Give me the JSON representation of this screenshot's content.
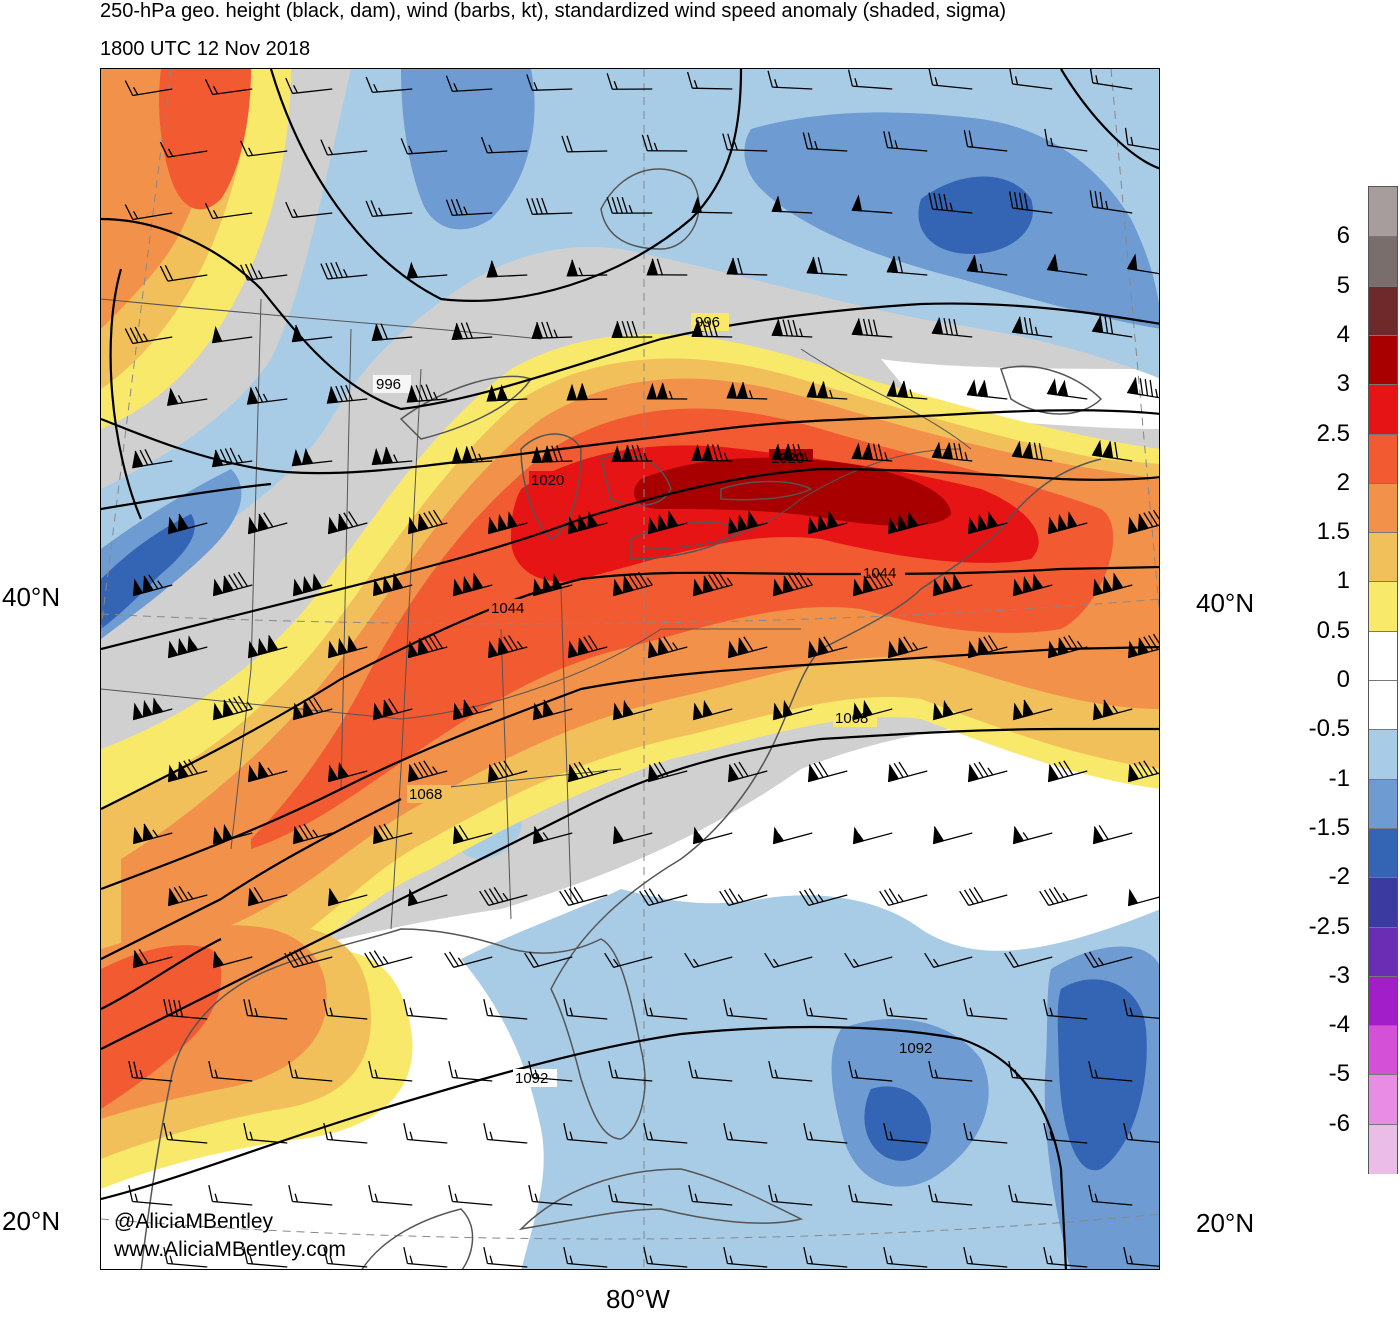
{
  "title_line1": "250-hPa geo. height (black, dam), wind (barbs, kt), standardized wind speed anomaly (shaded, sigma)",
  "title_line2": "1800 UTC 12 Nov 2018",
  "lat_labels": {
    "left_40": "40°N",
    "right_40": "40°N",
    "left_20": "20°N",
    "right_20": "20°N"
  },
  "lon_label": "80°W",
  "credit": {
    "twitter": "@AliciaMBentley",
    "website": "www.AliciaMBentley.com"
  },
  "contour_labels": [
    "996",
    "996",
    "1020",
    "1020",
    "1044",
    "1044",
    "1068",
    "1068",
    "1092",
    "1092"
  ],
  "colorbar": {
    "labels": [
      "6",
      "5",
      "4",
      "3",
      "2.5",
      "2",
      "1.5",
      "1",
      "0.5",
      "0",
      "-0.5",
      "-1",
      "-1.5",
      "-2",
      "-2.5",
      "-3",
      "-4",
      "-5",
      "-6"
    ],
    "colors": [
      "#a59e9c",
      "#7a6e6c",
      "#6e2a2a",
      "#a80000",
      "#e61414",
      "#f25a32",
      "#f2914a",
      "#f2c05a",
      "#f9e96a",
      "#ffffff",
      "#ffffff",
      "#a9cce6",
      "#6e9bd2",
      "#3464b4",
      "#3a3aa0",
      "#6a2eb4",
      "#a21ec8",
      "#d350d7",
      "#e88ce4",
      "#e9bde6"
    ]
  },
  "colors": {
    "gray_region": "#d0d0d0",
    "neg_05": "#a9cce6",
    "neg_1": "#6e9bd2",
    "neg_15": "#3464b4",
    "pos_05": "#f9e96a",
    "pos_1": "#f2c05a",
    "pos_15": "#f2914a",
    "pos_2": "#f25a32",
    "pos_25": "#e61414",
    "pos_3": "#a80000"
  }
}
